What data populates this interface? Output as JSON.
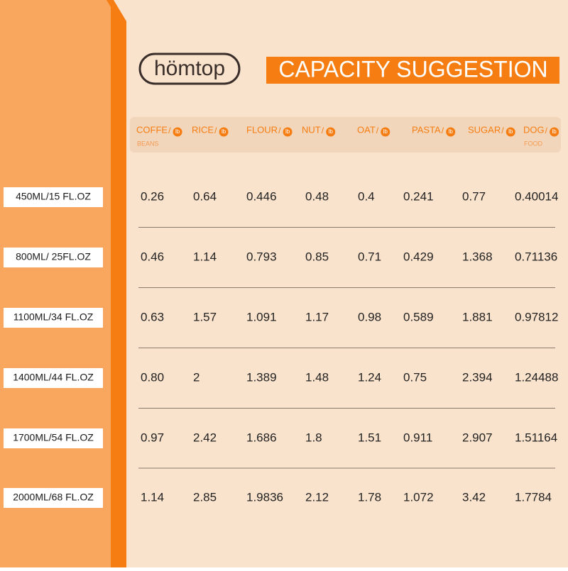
{
  "logo": "hömtop",
  "title": "CAPACITY SUGGESTION",
  "header": {
    "separator": "/",
    "unit": "lb",
    "columns": [
      {
        "name": "COFFE",
        "sub": "BEANS"
      },
      {
        "name": "RICE"
      },
      {
        "name": "FLOUR"
      },
      {
        "name": "NUT"
      },
      {
        "name": "OAT"
      },
      {
        "name": "PASTA"
      },
      {
        "name": "SUGAR"
      },
      {
        "name": "DOG",
        "sub": "FOOD"
      }
    ]
  },
  "table": {
    "rows": [
      {
        "label": "450ML/15 FL.OZ",
        "cells": [
          "0.26",
          "0.64",
          "0.446",
          "0.48",
          "0.4",
          "0.241",
          "0.77",
          "0.40014"
        ]
      },
      {
        "label": "800ML/ 25FL.OZ",
        "cells": [
          "0.46",
          "1.14",
          "0.793",
          "0.85",
          "0.71",
          "0.429",
          "1.368",
          "0.71136"
        ]
      },
      {
        "label": "1100ML/34 FL.OZ",
        "cells": [
          "0.63",
          "1.57",
          "1.091",
          "1.17",
          "0.98",
          "0.589",
          "1.881",
          "0.97812"
        ]
      },
      {
        "label": "1400ML/44 FL.OZ",
        "cells": [
          "0.80",
          "2",
          "1.389",
          "1.48",
          "1.24",
          "0.75",
          "2.394",
          "1.24488"
        ]
      },
      {
        "label": "1700ML/54 FL.OZ",
        "cells": [
          "0.97",
          "2.42",
          "1.686",
          "1.8",
          "1.51",
          "0.911",
          "2.907",
          "1.51164"
        ]
      },
      {
        "label": "2000ML/68 FL.OZ",
        "cells": [
          "1.14",
          "2.85",
          "1.9836",
          "2.12",
          "1.78",
          "1.072",
          "3.42",
          "1.7784"
        ]
      }
    ]
  }
}
